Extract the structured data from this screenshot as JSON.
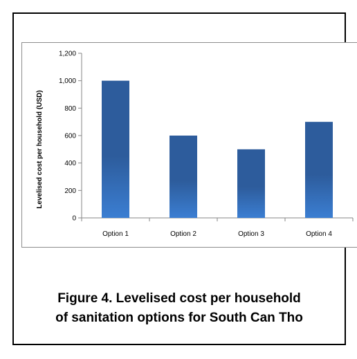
{
  "caption": {
    "line1": "Figure 4. Levelised cost per household",
    "line2": "of sanitation options for South Can Tho"
  },
  "chart_data": {
    "type": "bar",
    "title": "",
    "xlabel": "",
    "ylabel": "Levelised cost per household (USD)",
    "categories": [
      "Option 1",
      "Option 2",
      "Option 3",
      "Option 4"
    ],
    "values": [
      1000,
      600,
      500,
      700
    ],
    "ylim": [
      0,
      1200
    ],
    "yticks": [
      0,
      200,
      400,
      600,
      800,
      1000,
      1200
    ],
    "ytick_labels": [
      "0",
      "200",
      "400",
      "600",
      "800",
      "1,000",
      "1,200"
    ],
    "grid": false,
    "legend": "none",
    "bar_color_top": "#2d5c9c",
    "bar_color_bottom": "#3b7ed2"
  }
}
